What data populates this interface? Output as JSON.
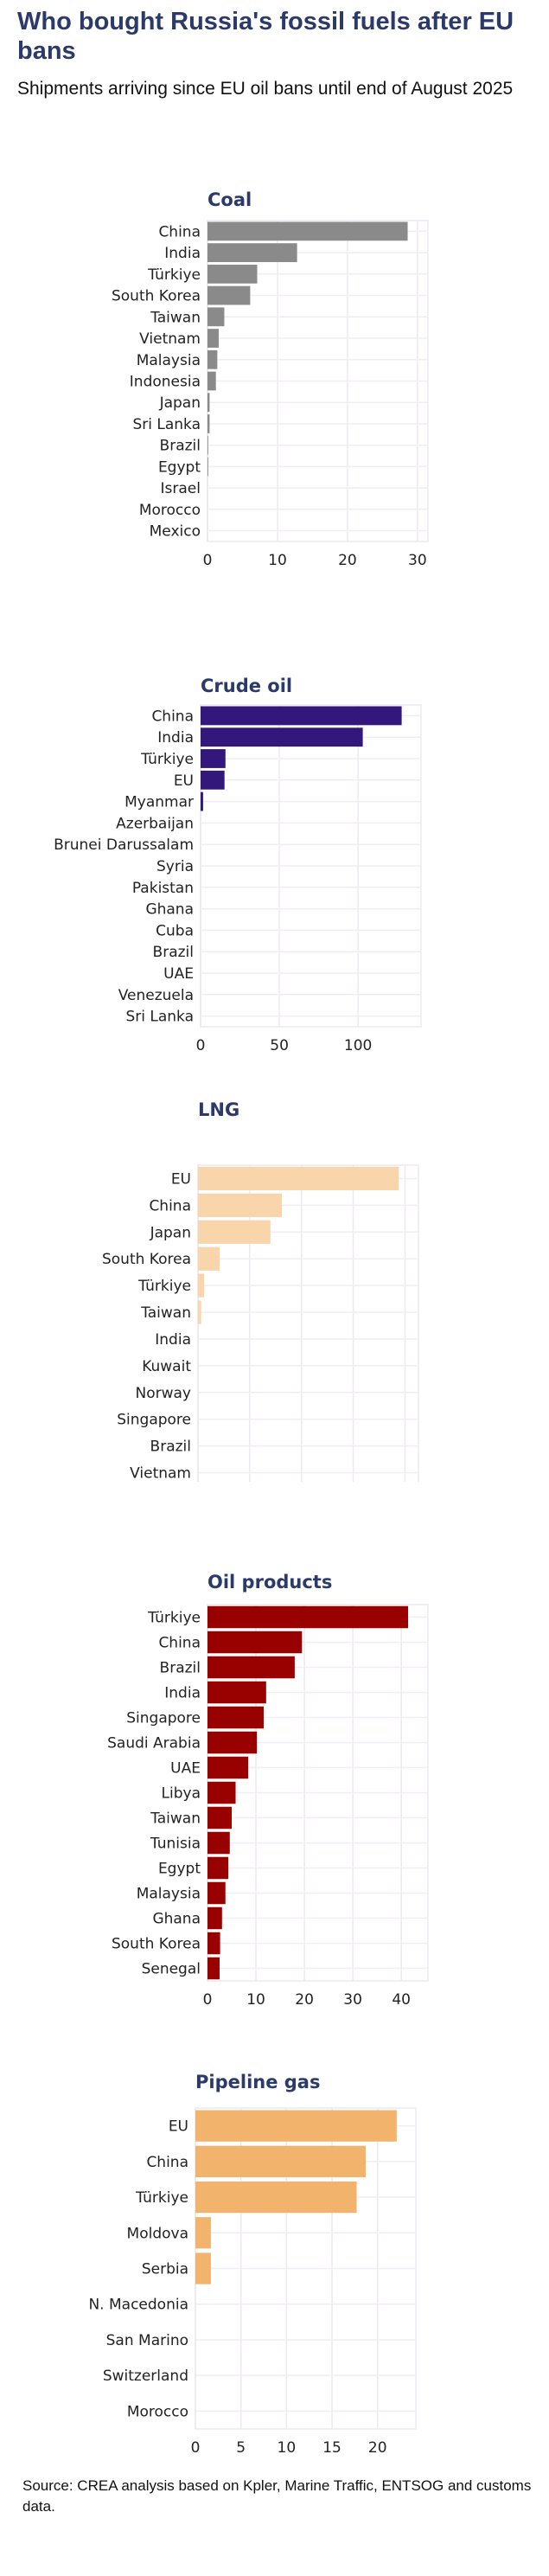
{
  "header": {
    "title": "Who bought Russia's fossil fuels after EU bans",
    "subtitle": "Shipments arriving since EU oil bans until end of August 2025"
  },
  "footer": {
    "source": "Source: CREA analysis based on Kpler, Marine Traffic, ENTSOG and customs data."
  },
  "chart_data": [
    {
      "type": "bar",
      "orientation": "horizontal",
      "title": "Coal",
      "color": "#8a8a8a",
      "categories": [
        "China",
        "India",
        "Türkiye",
        "South Korea",
        "Taiwan",
        "Vietnam",
        "Malaysia",
        "Indonesia",
        "Japan",
        "Sri Lanka",
        "Brazil",
        "Egypt",
        "Israel",
        "Morocco",
        "Mexico"
      ],
      "values": [
        28.6,
        12.8,
        7.1,
        6.1,
        2.4,
        1.6,
        1.4,
        1.2,
        0.3,
        0.3,
        0.1,
        0.1,
        0,
        0,
        0
      ],
      "xticks": [
        0,
        10,
        20,
        30
      ],
      "xlim": [
        0,
        31.5
      ],
      "grid": true
    },
    {
      "type": "bar",
      "orientation": "horizontal",
      "title": "Crude oil",
      "color": "#33177a",
      "categories": [
        "China",
        "India",
        "Türkiye",
        "EU",
        "Myanmar",
        "Azerbaijan",
        "Brunei Darussalam",
        "Syria",
        "Pakistan",
        "Ghana",
        "Cuba",
        "Brazil",
        "UAE",
        "Venezuela",
        "Sri Lanka"
      ],
      "values": [
        127.7,
        103,
        15.8,
        15.2,
        1.6,
        0,
        0,
        0,
        0,
        0,
        0,
        0,
        0,
        0,
        0
      ],
      "xticks": [
        0,
        50,
        100
      ],
      "xlim": [
        0,
        140
      ],
      "grid": true
    },
    {
      "type": "bar",
      "orientation": "horizontal",
      "title": "LNG",
      "color": "#f8d5ab",
      "categories": [
        "EU",
        "China",
        "Japan",
        "South Korea",
        "Türkiye",
        "Taiwan",
        "India",
        "Kuwait",
        "Norway",
        "Singapore",
        "Brazil",
        "Vietnam"
      ],
      "values": [
        19.4,
        8.1,
        7.0,
        2.1,
        0.6,
        0.3,
        0,
        0,
        0,
        0,
        0,
        0
      ],
      "xticks": [
        0,
        5,
        10,
        15,
        20
      ],
      "xlim": [
        0,
        21.3
      ],
      "grid": true
    },
    {
      "type": "bar",
      "orientation": "horizontal",
      "title": "Oil products",
      "color": "#990000",
      "categories": [
        "Türkiye",
        "China",
        "Brazil",
        "India",
        "Singapore",
        "Saudi Arabia",
        "UAE",
        "Libya",
        "Taiwan",
        "Tunisia",
        "Egypt",
        "Malaysia",
        "Ghana",
        "South Korea",
        "Senegal"
      ],
      "values": [
        41.4,
        19.5,
        18.0,
        12.1,
        11.6,
        10.2,
        8.4,
        5.8,
        5.0,
        4.6,
        4.3,
        3.7,
        3.0,
        2.6,
        2.5
      ],
      "xticks": [
        0,
        10,
        20,
        30,
        40
      ],
      "xlim": [
        0,
        45.5
      ],
      "grid": true
    },
    {
      "type": "bar",
      "orientation": "horizontal",
      "title": "Pipeline gas",
      "color": "#f2b36c",
      "categories": [
        "EU",
        "China",
        "Türkiye",
        "Moldova",
        "Serbia",
        "N. Macedonia",
        "San Marino",
        "Switzerland",
        "Morocco"
      ],
      "values": [
        22.1,
        18.7,
        17.7,
        1.7,
        1.7,
        0,
        0,
        0,
        0
      ],
      "xticks": [
        0,
        5,
        10,
        15,
        20
      ],
      "xlim": [
        0,
        24.2
      ],
      "grid": true
    }
  ]
}
